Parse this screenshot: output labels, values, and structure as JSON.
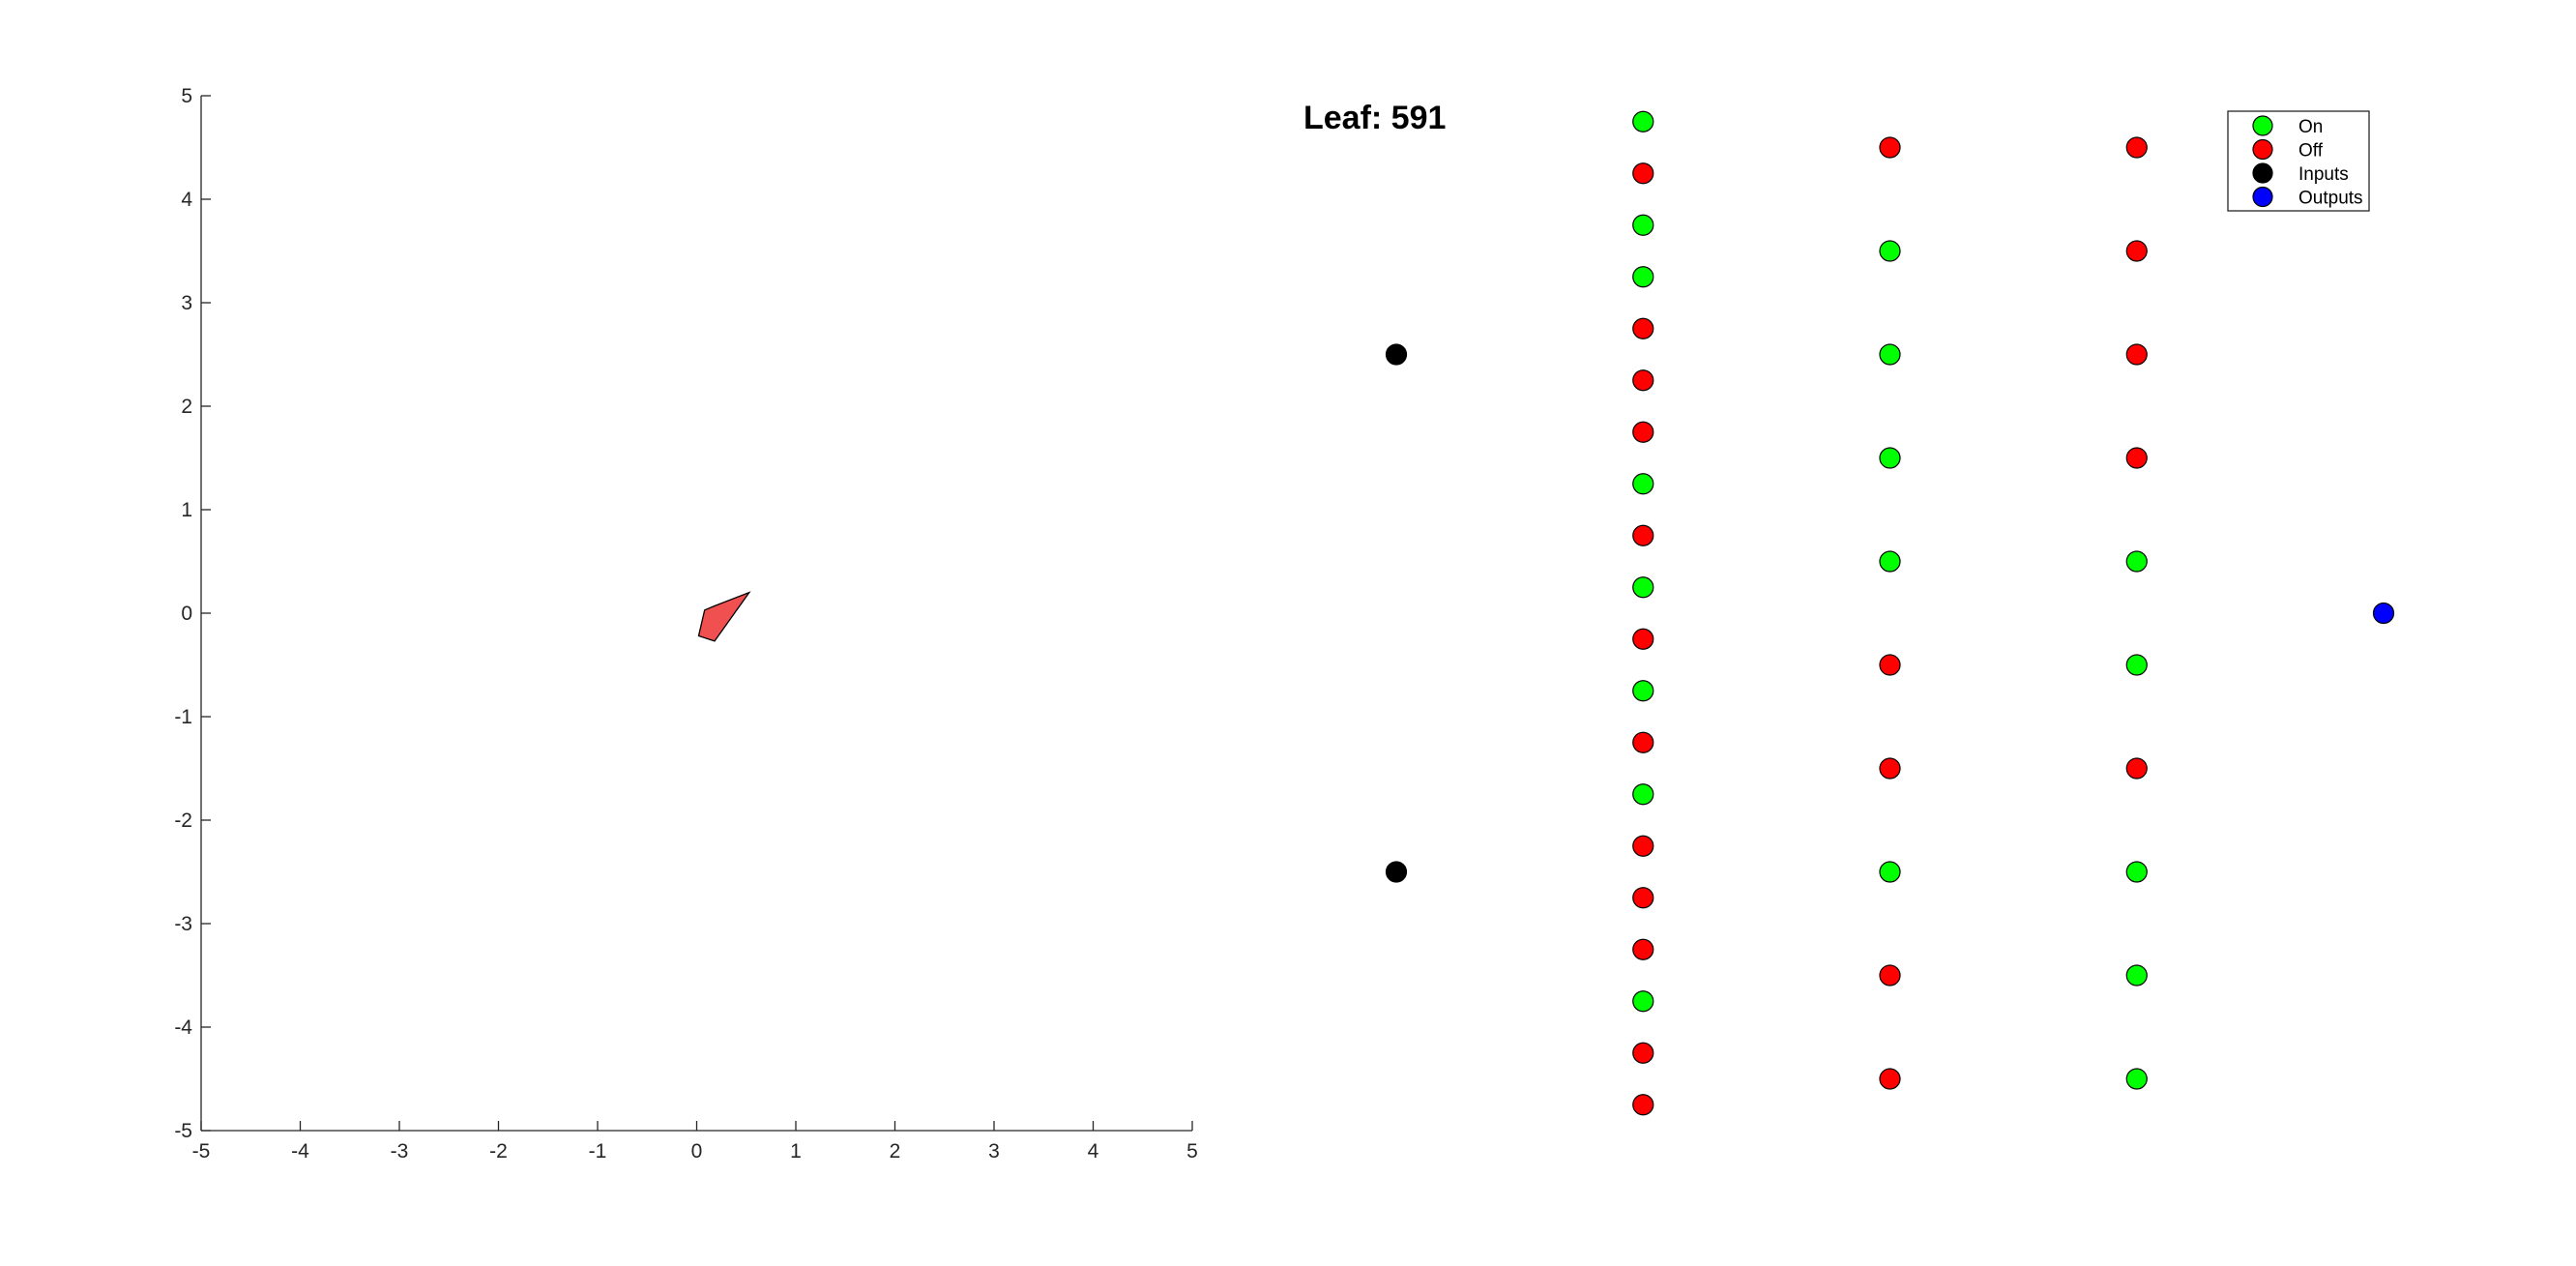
{
  "chart_data": [
    {
      "type": "scatter",
      "title": "",
      "xlabel": "",
      "ylabel": "",
      "xlim": [
        -5,
        5
      ],
      "ylim": [
        -5,
        5
      ],
      "grid": false,
      "x_ticks": [
        "-5",
        "-4",
        "-3",
        "-2",
        "-1",
        "0",
        "1",
        "2",
        "3",
        "4",
        "5"
      ],
      "y_ticks": [
        "5",
        "4",
        "3",
        "2",
        "1",
        "0",
        "-1",
        "-2",
        "-3",
        "-4",
        "-5"
      ],
      "shape": {
        "name": "Vehicle",
        "fill_color": "#f05050",
        "vertices": [
          [
            0.53,
            0.2
          ],
          [
            0.18,
            0.07
          ],
          [
            0.08,
            0.03
          ],
          [
            0.02,
            -0.22
          ],
          [
            0.18,
            -0.27
          ]
        ]
      }
    },
    {
      "type": "scatter",
      "title": "Leaf: 591",
      "xlim": [
        0,
        4
      ],
      "ylim": [
        -5,
        5
      ],
      "axes_visible": false,
      "legend": {
        "placement": "top-right",
        "entries": [
          {
            "label": "On",
            "color": "#00ff00"
          },
          {
            "label": "Off",
            "color": "#ff0000"
          },
          {
            "label": "Inputs",
            "color": "#000000"
          },
          {
            "label": "Outputs",
            "color": "#0000ff"
          }
        ]
      },
      "series": [
        {
          "name": "Inputs",
          "color": "#000000",
          "points": [
            [
              0,
              2.5
            ],
            [
              0,
              -2.5
            ]
          ]
        },
        {
          "name": "Layer 1",
          "points": [
            [
              1,
              4.75,
              "on"
            ],
            [
              1,
              4.25,
              "off"
            ],
            [
              1,
              3.75,
              "on"
            ],
            [
              1,
              3.25,
              "on"
            ],
            [
              1,
              2.75,
              "off"
            ],
            [
              1,
              2.25,
              "off"
            ],
            [
              1,
              1.75,
              "off"
            ],
            [
              1,
              1.25,
              "on"
            ],
            [
              1,
              0.75,
              "off"
            ],
            [
              1,
              0.25,
              "on"
            ],
            [
              1,
              -0.25,
              "off"
            ],
            [
              1,
              -0.75,
              "on"
            ],
            [
              1,
              -1.25,
              "off"
            ],
            [
              1,
              -1.75,
              "on"
            ],
            [
              1,
              -2.25,
              "off"
            ],
            [
              1,
              -2.75,
              "off"
            ],
            [
              1,
              -3.25,
              "off"
            ],
            [
              1,
              -3.75,
              "on"
            ],
            [
              1,
              -4.25,
              "off"
            ],
            [
              1,
              -4.75,
              "off"
            ]
          ]
        },
        {
          "name": "Layer 2",
          "points": [
            [
              2,
              4.5,
              "off"
            ],
            [
              2,
              3.5,
              "on"
            ],
            [
              2,
              2.5,
              "on"
            ],
            [
              2,
              1.5,
              "on"
            ],
            [
              2,
              0.5,
              "on"
            ],
            [
              2,
              -0.5,
              "off"
            ],
            [
              2,
              -1.5,
              "off"
            ],
            [
              2,
              -2.5,
              "on"
            ],
            [
              2,
              -3.5,
              "off"
            ],
            [
              2,
              -4.5,
              "off"
            ]
          ]
        },
        {
          "name": "Layer 3",
          "points": [
            [
              3,
              4.5,
              "off"
            ],
            [
              3,
              3.5,
              "off"
            ],
            [
              3,
              2.5,
              "off"
            ],
            [
              3,
              1.5,
              "off"
            ],
            [
              3,
              0.5,
              "on"
            ],
            [
              3,
              -0.5,
              "on"
            ],
            [
              3,
              -1.5,
              "off"
            ],
            [
              3,
              -2.5,
              "on"
            ],
            [
              3,
              -3.5,
              "on"
            ],
            [
              3,
              -4.5,
              "on"
            ]
          ]
        },
        {
          "name": "Outputs",
          "color": "#0000ff",
          "points": [
            [
              4,
              0
            ]
          ]
        }
      ],
      "state_colors": {
        "on": "#00ff00",
        "off": "#ff0000"
      }
    }
  ]
}
